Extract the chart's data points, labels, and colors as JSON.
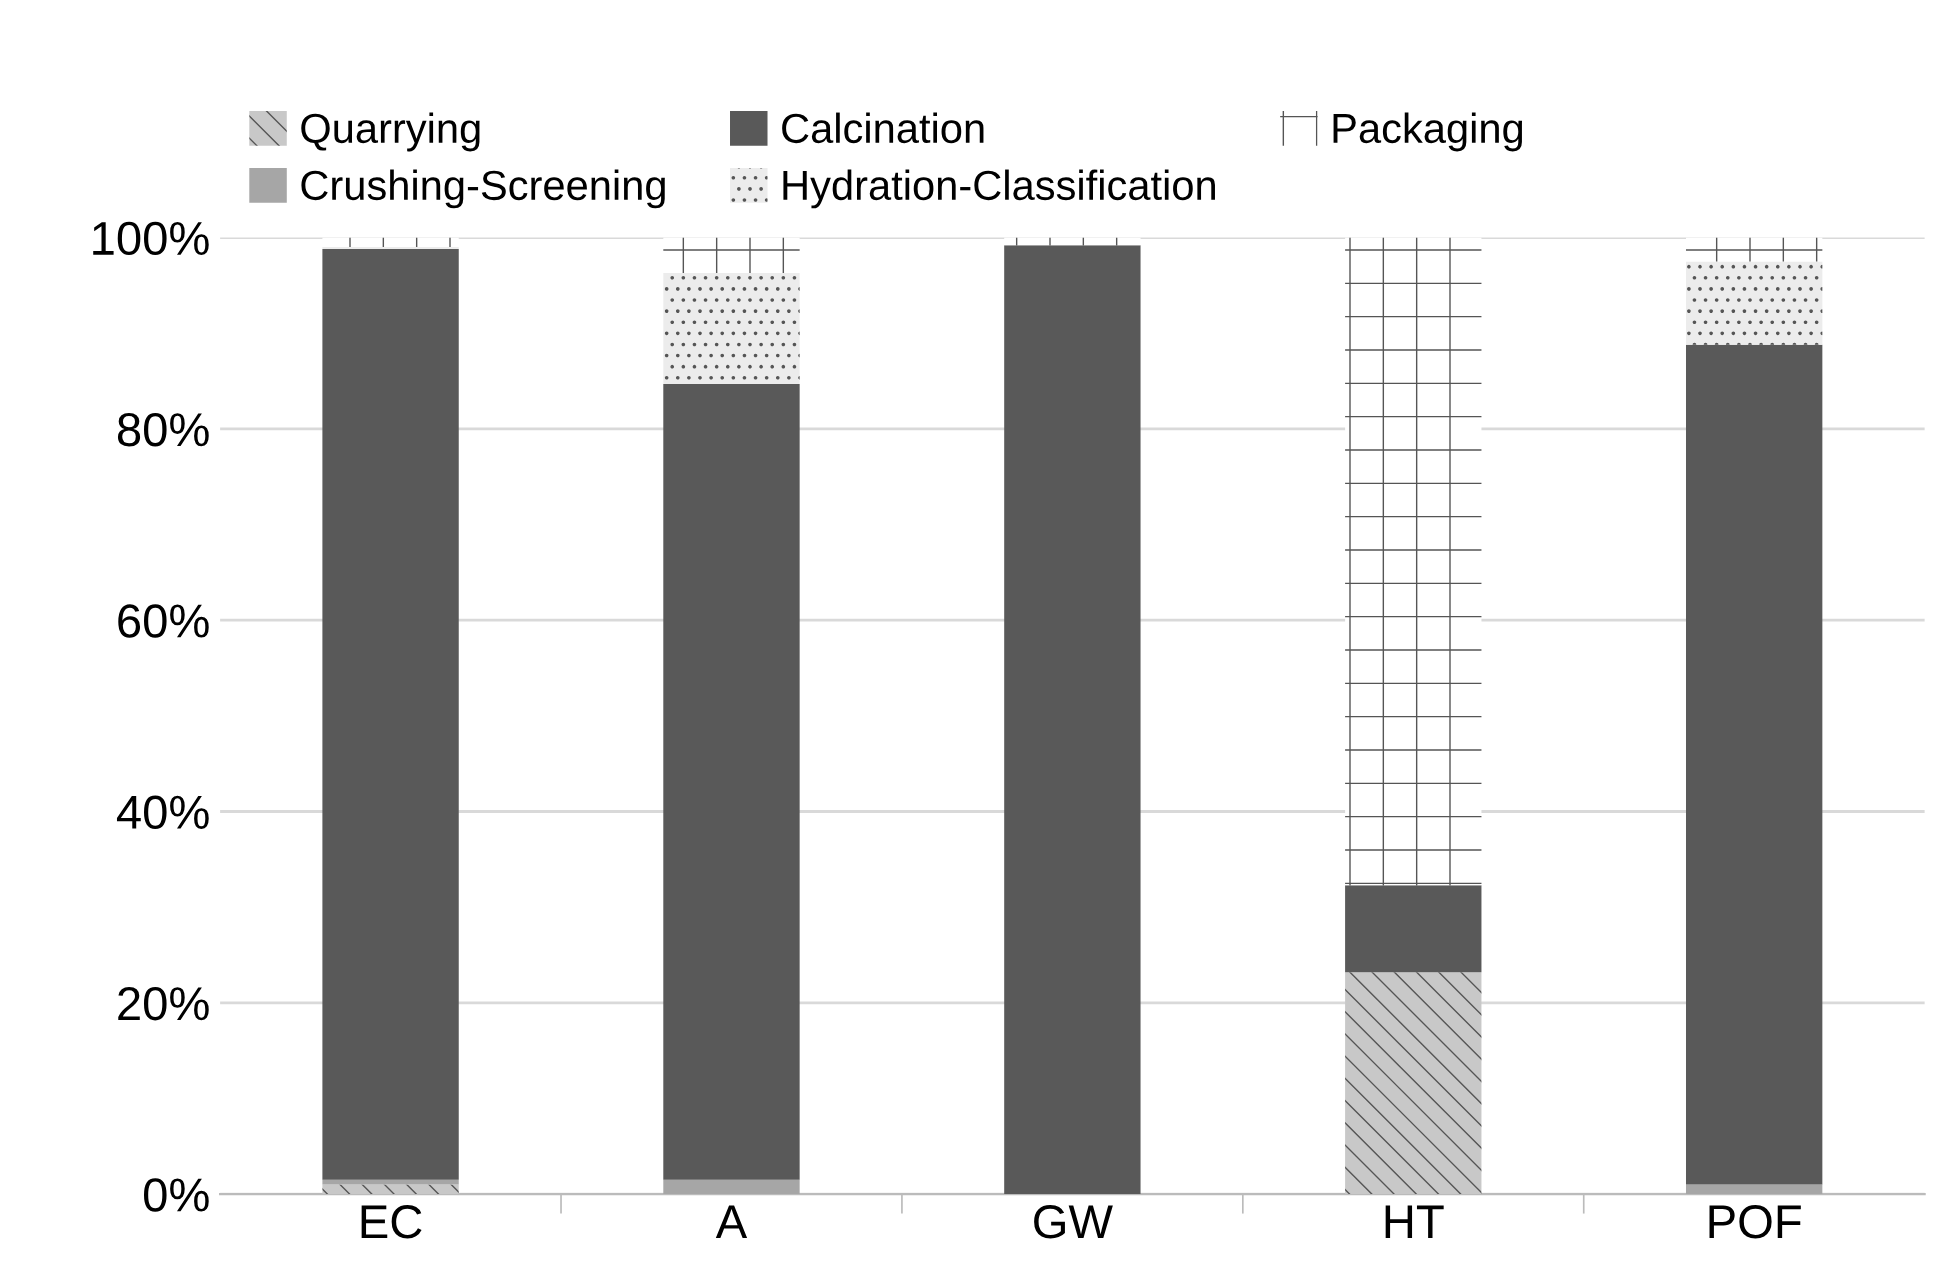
{
  "chart_data": {
    "type": "bar",
    "stacked": true,
    "categories": [
      "EC",
      "A",
      "GW",
      "HT",
      "POF"
    ],
    "series": [
      {
        "name": "Quarrying",
        "color": "#c8c8c8",
        "values": [
          1.0,
          0,
          0,
          23.2,
          0
        ]
      },
      {
        "name": "Crushing-Screening",
        "color": "#a6a6a6",
        "values": [
          0.5,
          1.5,
          0,
          0,
          1.0
        ]
      },
      {
        "name": "Calcination",
        "color": "#595959",
        "values": [
          97.3,
          83.2,
          99.2,
          9.1,
          87.8
        ]
      },
      {
        "name": "Hydration-Classification",
        "color": "#ececec",
        "values": [
          0.2,
          11.6,
          0,
          0,
          8.7
        ]
      },
      {
        "name": "Packaging",
        "color": "#ffffff",
        "values": [
          1.0,
          3.7,
          0.8,
          67.7,
          2.5
        ]
      }
    ],
    "ylim": [
      0,
      100
    ],
    "yticks": [
      {
        "value": 0,
        "label": "0%"
      },
      {
        "value": 20,
        "label": "20%"
      },
      {
        "value": 40,
        "label": "40%"
      },
      {
        "value": 60,
        "label": "60%"
      },
      {
        "value": 80,
        "label": "80%"
      },
      {
        "value": 100,
        "label": "100%"
      }
    ],
    "grid": "y",
    "legend": "top"
  }
}
